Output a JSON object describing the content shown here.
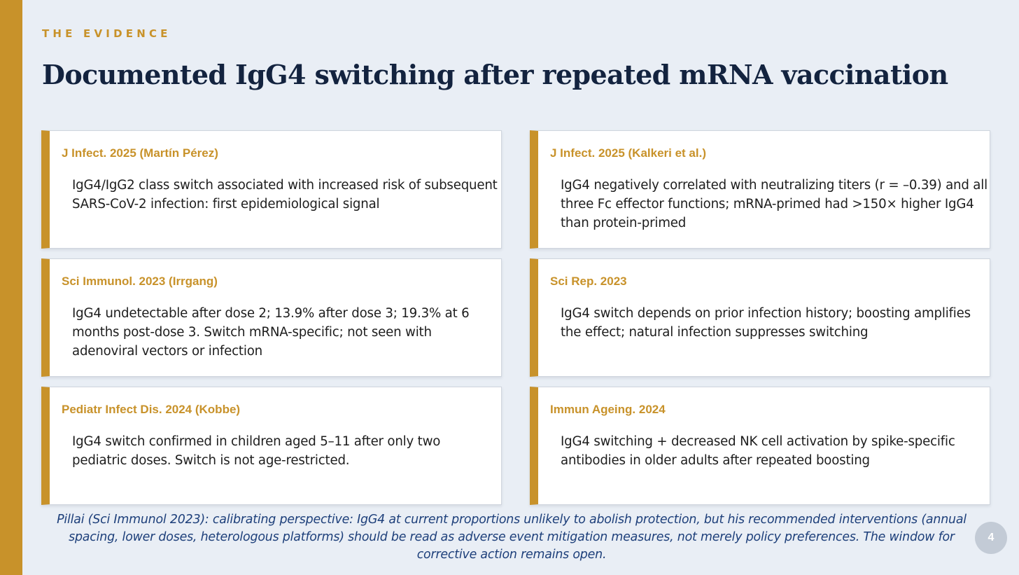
{
  "slide": {
    "eyebrow": "THE EVIDENCE",
    "title": "Documented IgG4 switching after repeated mRNA vaccination",
    "page_number": "4",
    "accent_color": "#c8922a",
    "title_color": "#13233f",
    "footnote_color": "#1d3f7a"
  },
  "cards": [
    {
      "heading": "J Infect. 2025 (Martín Pérez)",
      "body": "IgG4/IgG2 class switch associated with increased risk of subsequent SARS-CoV-2 infection: first epidemiological signal"
    },
    {
      "heading": "J Infect. 2025 (Kalkeri et al.)",
      "body": "IgG4 negatively correlated with neutralizing titers (r = –0.39) and all three Fc effector functions; mRNA-primed had >150× higher IgG4 than protein-primed"
    },
    {
      "heading": "Sci Immunol. 2023 (Irrgang)",
      "body": "IgG4 undetectable after dose 2; 13.9% after dose 3; 19.3% at 6 months post-dose 3. Switch mRNA-specific; not seen with adenoviral vectors or infection"
    },
    {
      "heading": "Sci Rep. 2023",
      "body": "IgG4 switch depends on prior infection history; boosting amplifies the effect; natural infection suppresses switching"
    },
    {
      "heading": "Pediatr Infect Dis. 2024 (Kobbe)",
      "body": "IgG4 switch confirmed in children aged 5–11 after only two pediatric doses. Switch is not age-restricted."
    },
    {
      "heading": "Immun Ageing. 2024",
      "body": "IgG4 switching + decreased NK cell activation by spike-specific antibodies in older adults after repeated boosting"
    }
  ],
  "footnote": "Pillai (Sci Immunol 2023): calibrating perspective: IgG4 at current proportions unlikely to abolish protection, but his recommended interventions (annual spacing, lower doses, heterologous platforms) should be read as adverse event mitigation measures, not merely policy preferences. The window for corrective action remains open."
}
